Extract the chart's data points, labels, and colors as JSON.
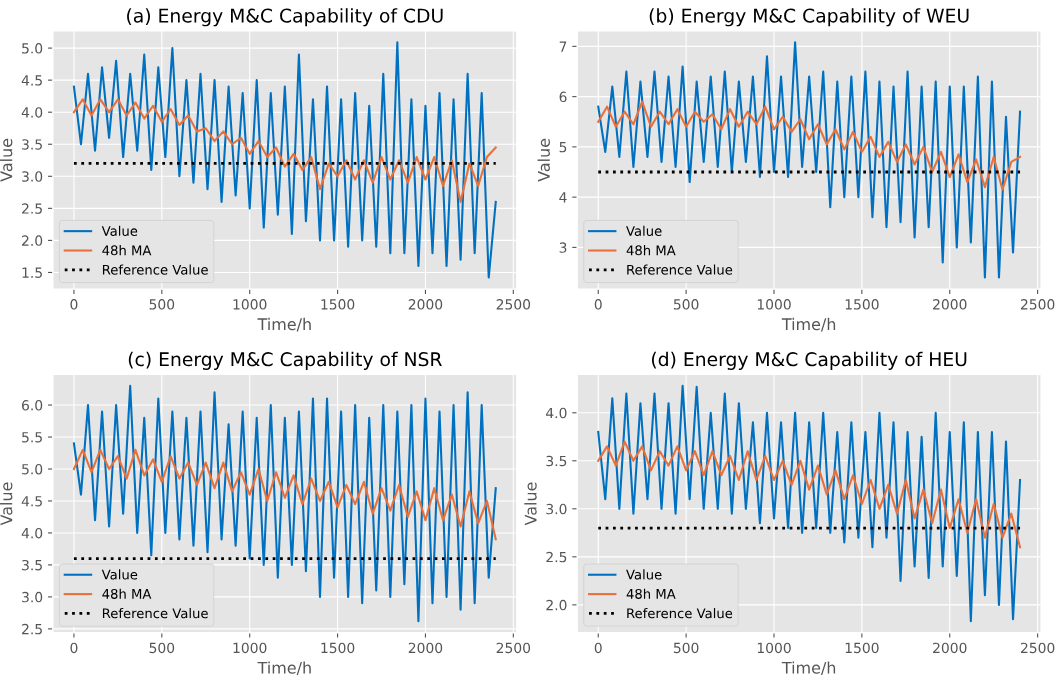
{
  "chart_data": [
    {
      "type": "line",
      "title": "(a) Energy M&C Capability of CDU",
      "xlabel": "Time/h",
      "ylabel": "Value",
      "xlim": [
        -120,
        2520
      ],
      "xticks": [
        0,
        500,
        1000,
        1500,
        2000,
        2500
      ],
      "ylim": [
        1.24,
        5.27
      ],
      "yticks": [
        1.5,
        {
          "value": 2,
          "label": "2.0"
        },
        2.5,
        {
          "value": 3,
          "label": "3.0"
        },
        3.5,
        {
          "value": 4,
          "label": "4.0"
        },
        4.5,
        {
          "value": 5,
          "label": "5.0"
        }
      ],
      "grid": true,
      "legend": "bottom left",
      "marker": "none",
      "series": [
        {
          "name": "Value",
          "color": "#0070c0",
          "line_style": "solid",
          "x": [
            0,
            40,
            80,
            120,
            160,
            200,
            240,
            280,
            320,
            360,
            400,
            440,
            480,
            520,
            560,
            600,
            640,
            680,
            720,
            760,
            800,
            840,
            880,
            920,
            960,
            1000,
            1040,
            1080,
            1120,
            1160,
            1200,
            1240,
            1280,
            1320,
            1360,
            1400,
            1440,
            1480,
            1520,
            1560,
            1600,
            1640,
            1680,
            1720,
            1760,
            1800,
            1840,
            1880,
            1920,
            1960,
            2000,
            2040,
            2080,
            2120,
            2160,
            2200,
            2240,
            2280,
            2320,
            2360,
            2400
          ],
          "values": [
            4.4,
            3.5,
            4.6,
            3.4,
            4.7,
            3.6,
            4.8,
            3.3,
            4.6,
            3.4,
            4.9,
            3.1,
            4.7,
            3.3,
            5.0,
            3.0,
            4.5,
            2.9,
            4.6,
            2.8,
            4.5,
            2.6,
            4.4,
            2.7,
            4.3,
            2.5,
            4.5,
            2.2,
            4.3,
            2.4,
            4.4,
            2.1,
            4.9,
            2.3,
            4.2,
            2.0,
            4.4,
            2.0,
            4.2,
            1.9,
            4.3,
            2.0,
            4.1,
            1.9,
            4.6,
            1.8,
            5.09,
            1.8,
            4.2,
            1.6,
            4.1,
            1.8,
            4.3,
            1.6,
            4.2,
            1.7,
            4.6,
            1.8,
            4.3,
            1.42,
            2.6
          ]
        },
        {
          "name": "48h MA",
          "color": "#e8703a",
          "line_style": "solid",
          "x": [
            0,
            50,
            100,
            150,
            200,
            250,
            300,
            350,
            400,
            450,
            500,
            550,
            600,
            650,
            700,
            750,
            800,
            850,
            900,
            950,
            1000,
            1050,
            1100,
            1150,
            1200,
            1250,
            1300,
            1350,
            1400,
            1450,
            1500,
            1550,
            1600,
            1650,
            1700,
            1750,
            1800,
            1850,
            1900,
            1950,
            2000,
            2050,
            2100,
            2150,
            2200,
            2250,
            2300,
            2350,
            2400
          ],
          "values": [
            4.0,
            4.2,
            3.95,
            4.2,
            4.0,
            4.2,
            3.95,
            4.15,
            3.9,
            4.1,
            3.85,
            4.05,
            3.8,
            3.95,
            3.7,
            3.75,
            3.55,
            3.7,
            3.5,
            3.6,
            3.35,
            3.55,
            3.3,
            3.45,
            3.15,
            3.35,
            3.1,
            3.3,
            2.8,
            3.2,
            3.0,
            3.25,
            2.95,
            3.25,
            2.9,
            3.3,
            2.95,
            3.25,
            2.9,
            3.3,
            2.95,
            3.3,
            2.85,
            3.25,
            2.6,
            3.2,
            2.85,
            3.3,
            3.45
          ]
        },
        {
          "name": "Reference Value",
          "color": "#000000",
          "line_style": "dotted",
          "x": [
            0,
            2400
          ],
          "values": [
            3.2,
            3.2
          ]
        }
      ]
    },
    {
      "type": "line",
      "title": "(b) Energy M&C Capability of WEU",
      "xlabel": "Time/h",
      "ylabel": "Value",
      "xlim": [
        -120,
        2520
      ],
      "xticks": [
        0,
        500,
        1000,
        1500,
        2000,
        2500
      ],
      "ylim": [
        2.17,
        7.31
      ],
      "yticks": [
        3,
        4,
        5,
        6,
        7
      ],
      "grid": true,
      "legend": "bottom left",
      "marker": "none",
      "series": [
        {
          "name": "Value",
          "color": "#0070c0",
          "line_style": "solid",
          "x": [
            0,
            40,
            80,
            120,
            160,
            200,
            240,
            280,
            320,
            360,
            400,
            440,
            480,
            520,
            560,
            600,
            640,
            680,
            720,
            760,
            800,
            840,
            880,
            920,
            960,
            1000,
            1040,
            1080,
            1120,
            1160,
            1200,
            1240,
            1280,
            1320,
            1360,
            1400,
            1440,
            1480,
            1520,
            1560,
            1600,
            1640,
            1680,
            1720,
            1760,
            1800,
            1840,
            1880,
            1920,
            1960,
            2000,
            2040,
            2080,
            2120,
            2160,
            2200,
            2240,
            2280,
            2320,
            2360,
            2400
          ],
          "values": [
            5.8,
            4.9,
            6.2,
            4.8,
            6.5,
            4.6,
            6.3,
            4.8,
            6.5,
            4.7,
            6.4,
            4.6,
            6.6,
            4.3,
            6.3,
            4.7,
            6.4,
            4.6,
            6.5,
            4.5,
            6.3,
            4.7,
            6.4,
            4.4,
            6.8,
            4.5,
            6.4,
            4.4,
            7.08,
            4.6,
            6.4,
            4.5,
            6.5,
            3.8,
            6.3,
            4.0,
            6.4,
            4.0,
            6.5,
            3.6,
            6.3,
            3.4,
            6.2,
            3.5,
            6.5,
            3.2,
            6.2,
            3.4,
            6.3,
            2.7,
            6.2,
            3.0,
            6.2,
            3.1,
            6.4,
            2.4,
            6.3,
            2.4,
            5.6,
            2.9,
            5.7
          ]
        },
        {
          "name": "48h MA",
          "color": "#e8703a",
          "line_style": "solid",
          "x": [
            0,
            50,
            100,
            150,
            200,
            250,
            300,
            350,
            400,
            450,
            500,
            550,
            600,
            650,
            700,
            750,
            800,
            850,
            900,
            950,
            1000,
            1050,
            1100,
            1150,
            1200,
            1250,
            1300,
            1350,
            1400,
            1450,
            1500,
            1550,
            1600,
            1650,
            1700,
            1750,
            1800,
            1850,
            1900,
            1950,
            2000,
            2050,
            2100,
            2150,
            2200,
            2250,
            2300,
            2350,
            2400
          ],
          "values": [
            5.5,
            5.8,
            5.4,
            5.7,
            5.45,
            5.9,
            5.4,
            5.7,
            5.45,
            5.75,
            5.4,
            5.7,
            5.5,
            5.65,
            5.35,
            5.75,
            5.4,
            5.7,
            5.45,
            5.8,
            5.35,
            5.6,
            5.3,
            5.55,
            5.15,
            5.45,
            5.05,
            5.35,
            4.95,
            5.3,
            4.9,
            5.2,
            4.8,
            5.1,
            4.7,
            5.05,
            4.65,
            5.0,
            4.5,
            4.9,
            4.4,
            4.85,
            4.3,
            4.75,
            4.2,
            4.8,
            4.15,
            4.7,
            4.8
          ]
        },
        {
          "name": "Reference Value",
          "color": "#000000",
          "line_style": "dotted",
          "x": [
            0,
            2400
          ],
          "values": [
            4.5,
            4.5
          ]
        }
      ]
    },
    {
      "type": "line",
      "title": "(c) Energy M&C Capability of NSR",
      "xlabel": "Time/h",
      "ylabel": "Value",
      "xlim": [
        -120,
        2520
      ],
      "xticks": [
        0,
        500,
        1000,
        1500,
        2000,
        2500
      ],
      "ylim": [
        2.44,
        6.48
      ],
      "yticks": [
        2.5,
        {
          "value": 3,
          "label": "3.0"
        },
        3.5,
        {
          "value": 4,
          "label": "4.0"
        },
        4.5,
        {
          "value": 5,
          "label": "5.0"
        },
        5.5,
        {
          "value": 6,
          "label": "6.0"
        }
      ],
      "grid": true,
      "legend": "bottom left",
      "marker": "none",
      "series": [
        {
          "name": "Value",
          "color": "#0070c0",
          "line_style": "solid",
          "x": [
            0,
            40,
            80,
            120,
            160,
            200,
            240,
            280,
            320,
            360,
            400,
            440,
            480,
            520,
            560,
            600,
            640,
            680,
            720,
            760,
            800,
            840,
            880,
            920,
            960,
            1000,
            1040,
            1080,
            1120,
            1160,
            1200,
            1240,
            1280,
            1320,
            1360,
            1400,
            1440,
            1480,
            1520,
            1560,
            1600,
            1640,
            1680,
            1720,
            1760,
            1800,
            1840,
            1880,
            1920,
            1960,
            2000,
            2040,
            2080,
            2120,
            2160,
            2200,
            2240,
            2280,
            2320,
            2360,
            2400
          ],
          "values": [
            5.4,
            4.6,
            6.0,
            4.2,
            5.9,
            4.1,
            6.0,
            4.3,
            6.3,
            4.0,
            5.8,
            3.65,
            6.1,
            4.0,
            5.9,
            3.9,
            5.8,
            3.8,
            5.9,
            3.7,
            6.2,
            3.9,
            5.7,
            3.8,
            5.9,
            3.6,
            5.8,
            3.5,
            6.0,
            3.3,
            5.8,
            3.5,
            5.9,
            3.4,
            6.1,
            3.0,
            6.1,
            3.3,
            5.9,
            3.0,
            6.0,
            2.9,
            5.8,
            3.1,
            6.0,
            3.0,
            5.9,
            3.2,
            6.0,
            2.62,
            6.1,
            2.9,
            5.9,
            3.0,
            6.0,
            2.8,
            6.2,
            2.9,
            6.0,
            3.3,
            4.7
          ]
        },
        {
          "name": "48h MA",
          "color": "#e8703a",
          "line_style": "solid",
          "x": [
            0,
            50,
            100,
            150,
            200,
            250,
            300,
            350,
            400,
            450,
            500,
            550,
            600,
            650,
            700,
            750,
            800,
            850,
            900,
            950,
            1000,
            1050,
            1100,
            1150,
            1200,
            1250,
            1300,
            1350,
            1400,
            1450,
            1500,
            1550,
            1600,
            1650,
            1700,
            1750,
            1800,
            1850,
            1900,
            1950,
            2000,
            2050,
            2100,
            2150,
            2200,
            2250,
            2300,
            2350,
            2400
          ],
          "values": [
            5.0,
            5.3,
            4.95,
            5.3,
            5.0,
            5.2,
            4.85,
            5.3,
            4.9,
            5.15,
            4.8,
            5.2,
            4.85,
            5.1,
            4.75,
            5.1,
            4.7,
            5.1,
            4.65,
            4.95,
            4.6,
            5.0,
            4.5,
            4.95,
            4.55,
            4.9,
            4.45,
            4.85,
            4.5,
            4.8,
            4.4,
            4.75,
            4.45,
            4.8,
            4.3,
            4.7,
            4.35,
            4.75,
            4.25,
            4.65,
            4.2,
            4.7,
            4.2,
            4.6,
            4.1,
            4.65,
            4.15,
            4.5,
            3.9
          ]
        },
        {
          "name": "Reference Value",
          "color": "#000000",
          "line_style": "dotted",
          "x": [
            0,
            2400
          ],
          "values": [
            3.6,
            3.6
          ]
        }
      ]
    },
    {
      "type": "line",
      "title": "(d) Energy M&C Capability of HEU",
      "xlabel": "Time/h",
      "ylabel": "Value",
      "xlim": [
        -120,
        2520
      ],
      "xticks": [
        0,
        500,
        1000,
        1500,
        2000,
        2500
      ],
      "ylim": [
        1.71,
        4.4
      ],
      "yticks": [
        {
          "value": 2,
          "label": "2.0"
        },
        2.5,
        {
          "value": 3,
          "label": "3.0"
        },
        3.5,
        {
          "value": 4,
          "label": "4.0"
        }
      ],
      "grid": true,
      "legend": "bottom left",
      "marker": "none",
      "series": [
        {
          "name": "Value",
          "color": "#0070c0",
          "line_style": "solid",
          "x": [
            0,
            40,
            80,
            120,
            160,
            200,
            240,
            280,
            320,
            360,
            400,
            440,
            480,
            520,
            560,
            600,
            640,
            680,
            720,
            760,
            800,
            840,
            880,
            920,
            960,
            1000,
            1040,
            1080,
            1120,
            1160,
            1200,
            1240,
            1280,
            1320,
            1360,
            1400,
            1440,
            1480,
            1520,
            1560,
            1600,
            1640,
            1680,
            1720,
            1760,
            1800,
            1840,
            1880,
            1920,
            1960,
            2000,
            2040,
            2080,
            2120,
            2160,
            2200,
            2240,
            2280,
            2320,
            2360,
            2400
          ],
          "values": [
            3.8,
            3.1,
            4.15,
            3.0,
            4.2,
            2.95,
            4.1,
            3.1,
            4.2,
            3.0,
            4.1,
            2.95,
            4.28,
            3.1,
            4.27,
            3.0,
            4.0,
            3.0,
            4.2,
            2.95,
            4.1,
            3.0,
            3.9,
            2.85,
            4.0,
            2.9,
            3.9,
            2.8,
            4.0,
            2.75,
            3.9,
            2.8,
            4.0,
            2.75,
            3.8,
            2.65,
            3.9,
            2.7,
            3.8,
            2.6,
            4.0,
            2.7,
            3.9,
            2.25,
            3.8,
            2.4,
            3.75,
            2.28,
            4.0,
            2.4,
            3.8,
            2.3,
            3.9,
            1.83,
            3.8,
            2.1,
            3.8,
            2.0,
            3.7,
            1.85,
            3.3
          ]
        },
        {
          "name": "48h MA",
          "color": "#e8703a",
          "line_style": "solid",
          "x": [
            0,
            50,
            100,
            150,
            200,
            250,
            300,
            350,
            400,
            450,
            500,
            550,
            600,
            650,
            700,
            750,
            800,
            850,
            900,
            950,
            1000,
            1050,
            1100,
            1150,
            1200,
            1250,
            1300,
            1350,
            1400,
            1450,
            1500,
            1550,
            1600,
            1650,
            1700,
            1750,
            1800,
            1850,
            1900,
            1950,
            2000,
            2050,
            2100,
            2150,
            2200,
            2250,
            2300,
            2350,
            2400
          ],
          "values": [
            3.5,
            3.65,
            3.45,
            3.7,
            3.5,
            3.65,
            3.4,
            3.6,
            3.45,
            3.65,
            3.4,
            3.6,
            3.35,
            3.6,
            3.35,
            3.55,
            3.3,
            3.6,
            3.3,
            3.55,
            3.3,
            3.5,
            3.25,
            3.5,
            3.2,
            3.45,
            3.15,
            3.4,
            3.1,
            3.35,
            3.05,
            3.3,
            3.0,
            3.25,
            2.95,
            3.3,
            2.9,
            3.2,
            2.85,
            3.2,
            2.8,
            3.1,
            2.75,
            3.1,
            2.7,
            3.05,
            2.7,
            2.95,
            2.6
          ]
        },
        {
          "name": "Reference Value",
          "color": "#000000",
          "line_style": "dotted",
          "x": [
            0,
            2400
          ],
          "values": [
            2.8,
            2.8
          ]
        }
      ]
    }
  ]
}
